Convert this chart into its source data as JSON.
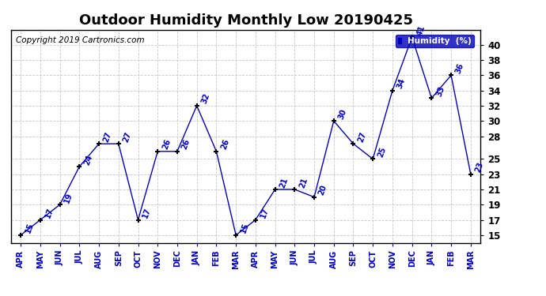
{
  "title": "Outdoor Humidity Monthly Low 20190425",
  "copyright": "Copyright 2019 Cartronics.com",
  "legend_label": "Humidity  (%)",
  "x_labels": [
    "APR",
    "MAY",
    "JUN",
    "JUL",
    "AUG",
    "SEP",
    "OCT",
    "NOV",
    "DEC",
    "JAN",
    "FEB",
    "MAR",
    "APR",
    "MAY",
    "JUN",
    "JUL",
    "AUG",
    "SEP",
    "OCT",
    "NOV",
    "DEC",
    "JAN",
    "FEB",
    "MAR"
  ],
  "y_values": [
    15,
    17,
    19,
    24,
    27,
    27,
    17,
    26,
    26,
    32,
    26,
    15,
    17,
    21,
    21,
    20,
    30,
    27,
    25,
    34,
    41,
    33,
    36,
    23
  ],
  "y_ticks": [
    15,
    17,
    19,
    21,
    23,
    25,
    28,
    30,
    32,
    34,
    36,
    38,
    40
  ],
  "ylim": [
    14.0,
    42.0
  ],
  "line_color": "#0000cc",
  "marker_color": "#000000",
  "bg_color": "#ffffff",
  "grid_color": "#bbbbbb",
  "title_fontsize": 13,
  "copyright_fontsize": 7.5,
  "legend_bg": "#0000bb",
  "legend_text_color": "#ffffff",
  "annotation_color": "#0000cc",
  "annotation_fontsize": 7,
  "tick_fontsize": 8.5,
  "xtick_fontsize": 7
}
